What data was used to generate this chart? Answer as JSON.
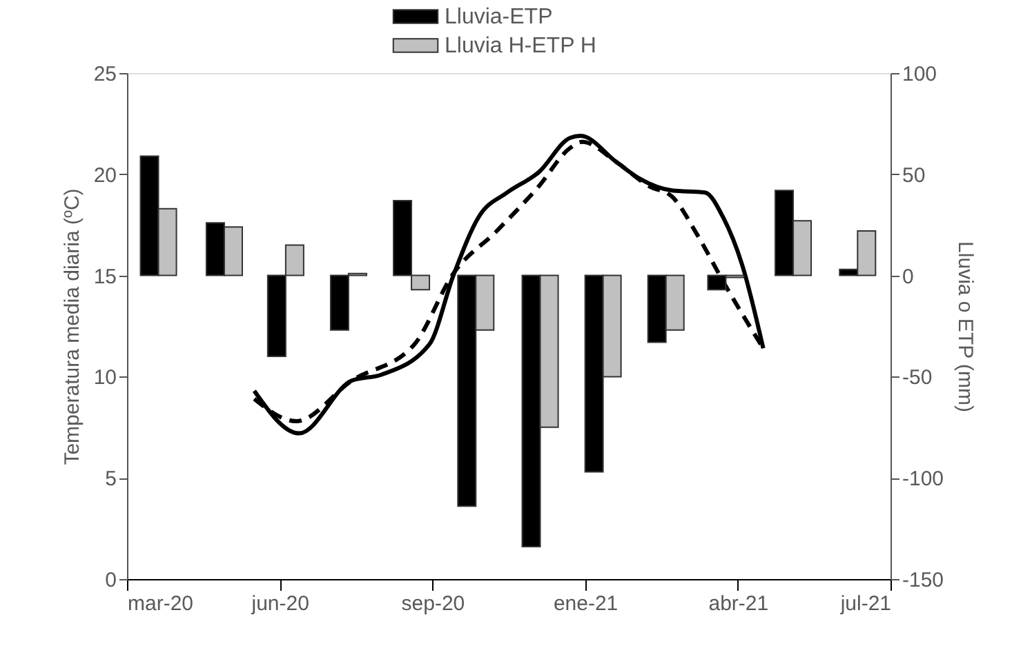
{
  "chart_data": {
    "type": "bar",
    "xlabel": null,
    "ylabel": "Temperatura media diaria (ºC)",
    "y2label": "Lluvia o ETP (mm)",
    "xlim": [
      "2020-03-01",
      "2021-07-24"
    ],
    "xticks": [
      {
        "value": "2020-03-01",
        "label": "mar-20"
      },
      {
        "value": "2020-06-11",
        "label": "jun-20"
      },
      {
        "value": "2020-09-21",
        "label": "sep-20"
      },
      {
        "value": "2021-01-01",
        "label": "ene-21"
      },
      {
        "value": "2021-04-13",
        "label": "abr-21"
      },
      {
        "value": "2021-07-24",
        "label": "jul-21"
      }
    ],
    "ylim": [
      0,
      25
    ],
    "yticks": [
      0,
      5,
      10,
      15,
      20,
      25
    ],
    "y2lim": [
      -150,
      100
    ],
    "y2ticks": [
      -150,
      -100,
      -50,
      0,
      50,
      100
    ],
    "grid": false,
    "legend": "top",
    "series": [
      {
        "name": "Lluvia-ETP",
        "axis": "y2",
        "color": "#000000",
        "x": [
          "2020-03-16",
          "2020-04-29",
          "2020-06-09",
          "2020-07-21",
          "2020-09-01",
          "2020-10-14",
          "2020-11-26",
          "2021-01-07",
          "2021-02-18",
          "2021-03-30",
          "2021-05-14",
          "2021-06-26"
        ],
        "values": [
          59,
          26,
          -40,
          -27,
          37,
          -114,
          -134,
          -97,
          -33,
          -7,
          42,
          3
        ]
      },
      {
        "name": "Lluvia H-ETP H",
        "axis": "y2",
        "color": "#c0c0c0",
        "x": [
          "2020-03-28",
          "2020-05-11",
          "2020-06-21",
          "2020-08-02",
          "2020-09-13",
          "2020-10-26",
          "2020-12-08",
          "2021-01-19",
          "2021-03-02",
          "2021-04-11",
          "2021-05-26",
          "2021-07-08"
        ],
        "values": [
          33,
          24,
          15,
          1,
          -7,
          -27,
          -75,
          -50,
          -27,
          -1,
          27,
          22
        ]
      },
      {
        "type": "line",
        "line_style": "solid",
        "color": "#000000",
        "x": [
          "2020-05-25",
          "2020-06-24",
          "2020-07-29",
          "2020-08-18",
          "2020-09-19",
          "2020-10-05",
          "2020-10-22",
          "2020-11-10",
          "2020-12-01",
          "2020-12-22",
          "2020-12-29",
          "2021-01-22",
          "2021-02-06",
          "2021-02-28",
          "2021-03-22",
          "2021-04-03",
          "2021-04-16",
          "2021-04-30"
        ],
        "values": [
          9.3,
          7.2,
          9.8,
          10.1,
          11.6,
          15.0,
          17.9,
          19.1,
          20.1,
          21.8,
          21.9,
          20.6,
          19.8,
          19.2,
          19.1,
          17.9,
          15.5,
          11.4
        ]
      },
      {
        "type": "line",
        "line_style": "dashed",
        "color": "#000000",
        "x": [
          "2020-05-25",
          "2020-06-22",
          "2020-07-29",
          "2020-09-09",
          "2020-10-05",
          "2020-11-03",
          "2020-12-01",
          "2020-12-22",
          "2020-12-30",
          "2021-01-22",
          "2021-02-13",
          "2021-02-28",
          "2021-03-17",
          "2021-04-04",
          "2021-04-30"
        ],
        "values": [
          8.9,
          7.8,
          9.8,
          11.6,
          15.1,
          17.2,
          19.4,
          21.3,
          21.6,
          20.6,
          19.4,
          18.9,
          17.0,
          14.6,
          11.4
        ]
      }
    ]
  }
}
